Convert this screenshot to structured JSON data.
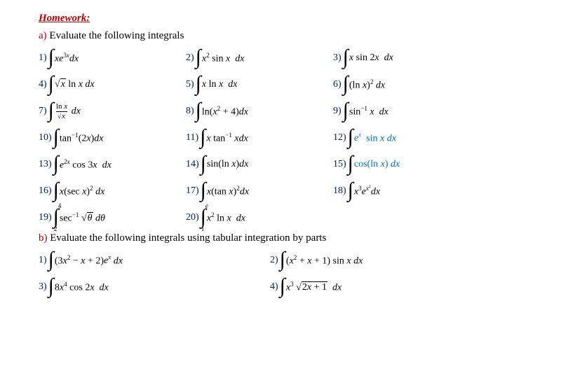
{
  "title": "Homework:",
  "title_color": "#c00000",
  "section_a_label": "a)",
  "section_a_text": " Evaluate the following integrals",
  "section_b_label": "b)",
  "section_b_text": " Evaluate the following integrals using tabular integration by parts",
  "accent_color": "#002060",
  "blue_color": "#0070c0",
  "partA": {
    "rows": [
      [
        {
          "n": "1)",
          "html": "<i>xe</i><sup>3<i>x</i></sup><i>dx</i>"
        },
        {
          "n": "2)",
          "html": "<i>x</i><sup>2</sup> sin <i>x</i> &nbsp;<i>dx</i>"
        },
        {
          "n": "3)",
          "html": "<i>x</i> sin 2<i>x</i> &nbsp;<i>dx</i>"
        }
      ],
      [
        {
          "n": "4)",
          "html": "<span class='radsign'>&radic;</span><span class='sqrt'><i>x</i></span> ln <i>x</i> <i>dx</i>"
        },
        {
          "n": "5)",
          "html": "<i>x</i> ln <i>x</i> &nbsp;<i>dx</i>"
        },
        {
          "n": "6)",
          "html": "(ln <i>x</i>)<sup>2</sup> <i>dx</i>"
        }
      ],
      [
        {
          "n": "7)",
          "html": "<span class='frac'><span class='ftop'>ln <i>x</i></span><span class='fbot'><span style='font-size:9px'>&radic;</span><span class='sqrt'><i>x</i></span></span></span> <i>dx</i>"
        },
        {
          "n": "8)",
          "html": "ln(<i>x</i><sup>2</sup> + 4)<i>dx</i>"
        },
        {
          "n": "9)",
          "html": "sin<sup>&minus;1</sup> <i>x</i> &nbsp;<i>dx</i>"
        }
      ],
      [
        {
          "n": "10)",
          "html": "tan<sup>&minus;1</sup>(2<i>x</i>)<i>dx</i>"
        },
        {
          "n": "11)",
          "html": "<i>x</i> tan<sup>&minus;1</sup> <i>xdx</i>"
        },
        {
          "n": "12)",
          "html": "<span class='blueexp'><i>e<sup>x</sup></i> &nbsp;sin <i>x</i> <i>dx</i></span>"
        }
      ],
      [
        {
          "n": "13)",
          "html": "<i>e</i><sup>2<i>x</i></sup> cos 3<i>x</i> &nbsp;<i>dx</i>"
        },
        {
          "n": "14)",
          "html": "sin(ln <i>x</i>)<i>dx</i>"
        },
        {
          "n": "15)",
          "html": "<span class='blueexp'>cos(ln <i>x</i>) <i>dx</i></span>"
        }
      ],
      [
        {
          "n": "16)",
          "html": "<i>x</i>(sec <i>x</i>)<sup>2</sup> <i>dx</i>"
        },
        {
          "n": "17)",
          "html": "<i>x</i>(tan <i>x</i>)<sup>2</sup><i>dx</i>"
        },
        {
          "n": "18)",
          "html": "<i>x</i><sup>3</sup><i>e</i><sup><i>x</i><sup>2</sup></sup><i>dx</i>"
        }
      ],
      [
        {
          "n": "19)",
          "limits": {
            "lo": "2",
            "up": "4"
          },
          "html": "sec<sup>&minus;1</sup> <span class='radsign'>&radic;</span><span class='sqrt'><i>&theta;</i></span> <i>d&theta;</i>"
        },
        {
          "n": "20)",
          "limits": {
            "lo": "1",
            "up": "<i>e</i>"
          },
          "html": "<i>x</i><sup>2</sup> ln <i>x</i> &nbsp;<i>dx</i>"
        }
      ]
    ]
  },
  "partB": {
    "rows": [
      [
        {
          "n": "1)",
          "html": "(3<i>x</i><sup>2</sup> &minus; <i>x</i> + 2)<i>e<sup>x</sup></i> <i>dx</i>"
        },
        {
          "n": "2)",
          "html": "(<i>x</i><sup>2</sup> + <i>x</i> + 1) sin <i>x</i> <i>dx</i>"
        }
      ],
      [
        {
          "n": "3)",
          "html": "8<i>x</i><sup>4</sup> cos 2<i>x</i> &nbsp;<i>dx</i>"
        },
        {
          "n": "4)",
          "html": "<i>x</i><sup>3</sup> <span class='radsign'>&radic;</span><span class='sqrt'>2<i>x</i> + 1</span> &nbsp;<i>dx</i>"
        }
      ]
    ]
  }
}
